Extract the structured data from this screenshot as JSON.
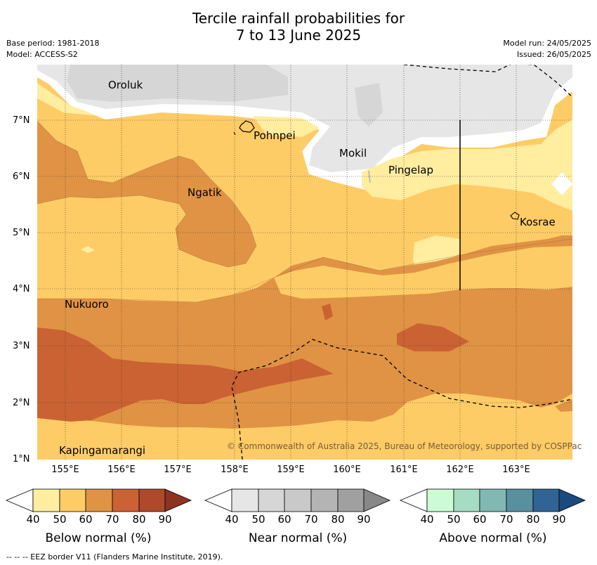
{
  "title_line1": "Tercile rainfall probabilities for",
  "title_line2": "7 to 13 June 2025",
  "base_period": "Base period: 1981-2018",
  "model": "Model: ACCESS-S2",
  "model_run": "Model run: 24/05/2025",
  "issued": "Issued: 26/05/2025",
  "copyright": "© Commonwealth of Australia 2025, Bureau of Meteorology, supported by COSPPac",
  "footer": "--  --  -- EEZ border V11 (Flanders Marine Institute, 2019).",
  "map": {
    "lon_labels": [
      "155°E",
      "156°E",
      "157°E",
      "158°E",
      "159°E",
      "160°E",
      "161°E",
      "162°E",
      "163°E"
    ],
    "lat_labels": [
      "7°N",
      "6°N",
      "5°N",
      "4°N",
      "3°N",
      "2°N",
      "1°N"
    ],
    "places": [
      {
        "id": "oroluk",
        "name": "Oroluk"
      },
      {
        "id": "pohnpei",
        "name": "Pohnpei"
      },
      {
        "id": "mokil",
        "name": "Mokil"
      },
      {
        "id": "pingelap",
        "name": "Pingelap"
      },
      {
        "id": "ngatik",
        "name": "Ngatik"
      },
      {
        "id": "kosrae",
        "name": "Kosrae"
      },
      {
        "id": "nukuoro",
        "name": "Nukuoro"
      },
      {
        "id": "kapingamarangi",
        "name": "Kapingamarangi"
      }
    ]
  },
  "colorbars": [
    {
      "id": "below",
      "label": "Below normal (%)",
      "ticks": [
        "40",
        "50",
        "60",
        "70",
        "80",
        "90"
      ],
      "colors": [
        "#ffffff",
        "#ffeda0",
        "#fecc66",
        "#e09344",
        "#cb6233",
        "#ae4a2a",
        "#8e3320"
      ]
    },
    {
      "id": "near",
      "label": "Near normal (%)",
      "ticks": [
        "40",
        "50",
        "60",
        "70",
        "80",
        "90"
      ],
      "colors": [
        "#ffffff",
        "#e6e6e6",
        "#d6d6d6",
        "#c9c9c9",
        "#b4b4b4",
        "#a0a0a0",
        "#888888"
      ]
    },
    {
      "id": "above",
      "label": "Above normal (%)",
      "ticks": [
        "40",
        "50",
        "60",
        "70",
        "80",
        "90"
      ],
      "colors": [
        "#ffffff",
        "#ccfcd4",
        "#a4dcc4",
        "#80b8b4",
        "#5890a0",
        "#306494",
        "#1a4a80"
      ]
    }
  ]
}
